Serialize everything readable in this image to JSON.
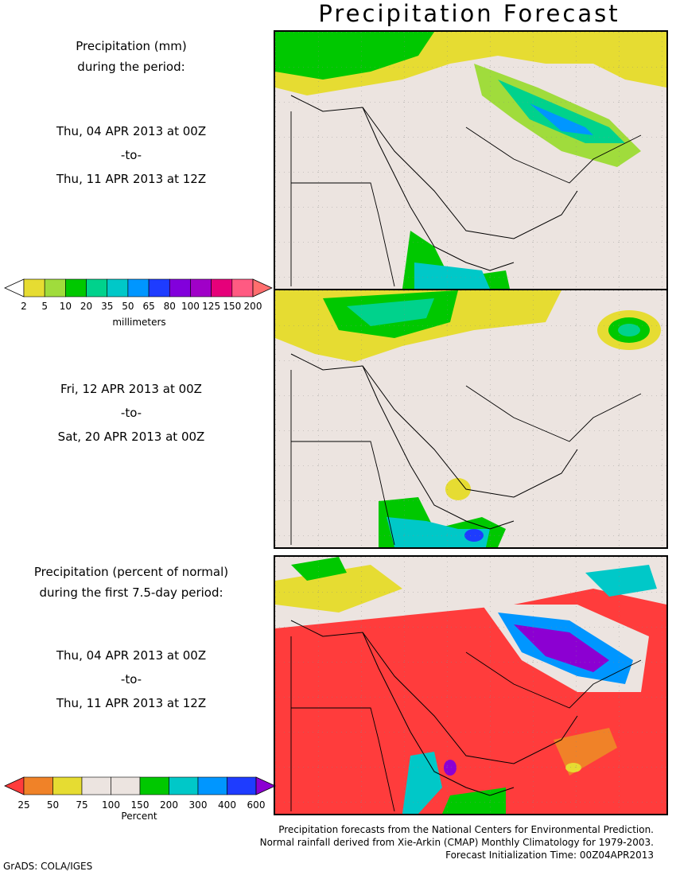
{
  "title": "Precipitation Forecast",
  "panel1": {
    "heading_line1": "Precipitation (mm)",
    "heading_line2": "during the period:",
    "start": "Thu, 04 APR 2013 at 00Z",
    "to": "-to-",
    "end": "Thu, 11 APR 2013 at 12Z"
  },
  "panel2": {
    "start": "Fri, 12 APR 2013 at 00Z",
    "to": "-to-",
    "end": "Sat, 20 APR 2013 at 00Z"
  },
  "panel3": {
    "heading_line1": "Precipitation (percent of normal)",
    "heading_line2": "during the first 7.5-day period:",
    "start": "Thu, 04 APR 2013 at 00Z",
    "to": "-to-",
    "end": "Thu, 11 APR 2013 at 12Z"
  },
  "legend_mm": {
    "unit": "millimeters",
    "ticks": [
      "2",
      "5",
      "10",
      "20",
      "35",
      "50",
      "65",
      "80",
      "100",
      "125",
      "150",
      "200"
    ],
    "colors": [
      "#ffffff",
      "#e6dc32",
      "#a0dc3c",
      "#00c800",
      "#00d28c",
      "#00c8c8",
      "#0096ff",
      "#1e3cff",
      "#8200dc",
      "#a000c8",
      "#e6007a",
      "#ff5a82",
      "#ff6e6e"
    ]
  },
  "legend_pct": {
    "unit": "Percent",
    "ticks": [
      "25",
      "50",
      "75",
      "100",
      "150",
      "200",
      "300",
      "400",
      "600"
    ],
    "colors": [
      "#ff3c3c",
      "#f08228",
      "#e6dc32",
      "#ece4e0",
      "#ece4e0",
      "#00c800",
      "#00c8c8",
      "#0096ff",
      "#1e3cff",
      "#8c00d2"
    ]
  },
  "footer": {
    "line1": "Precipitation forecasts from the National Centers for Environmental Prediction.",
    "line2": "Normal rainfall derived from Xie-Arkin (CMAP) Monthly Climatology for 1979-2003.",
    "line3": "Forecast Initialization Time: 00Z04APR2013"
  },
  "credit": "GrADS: COLA/IGES"
}
